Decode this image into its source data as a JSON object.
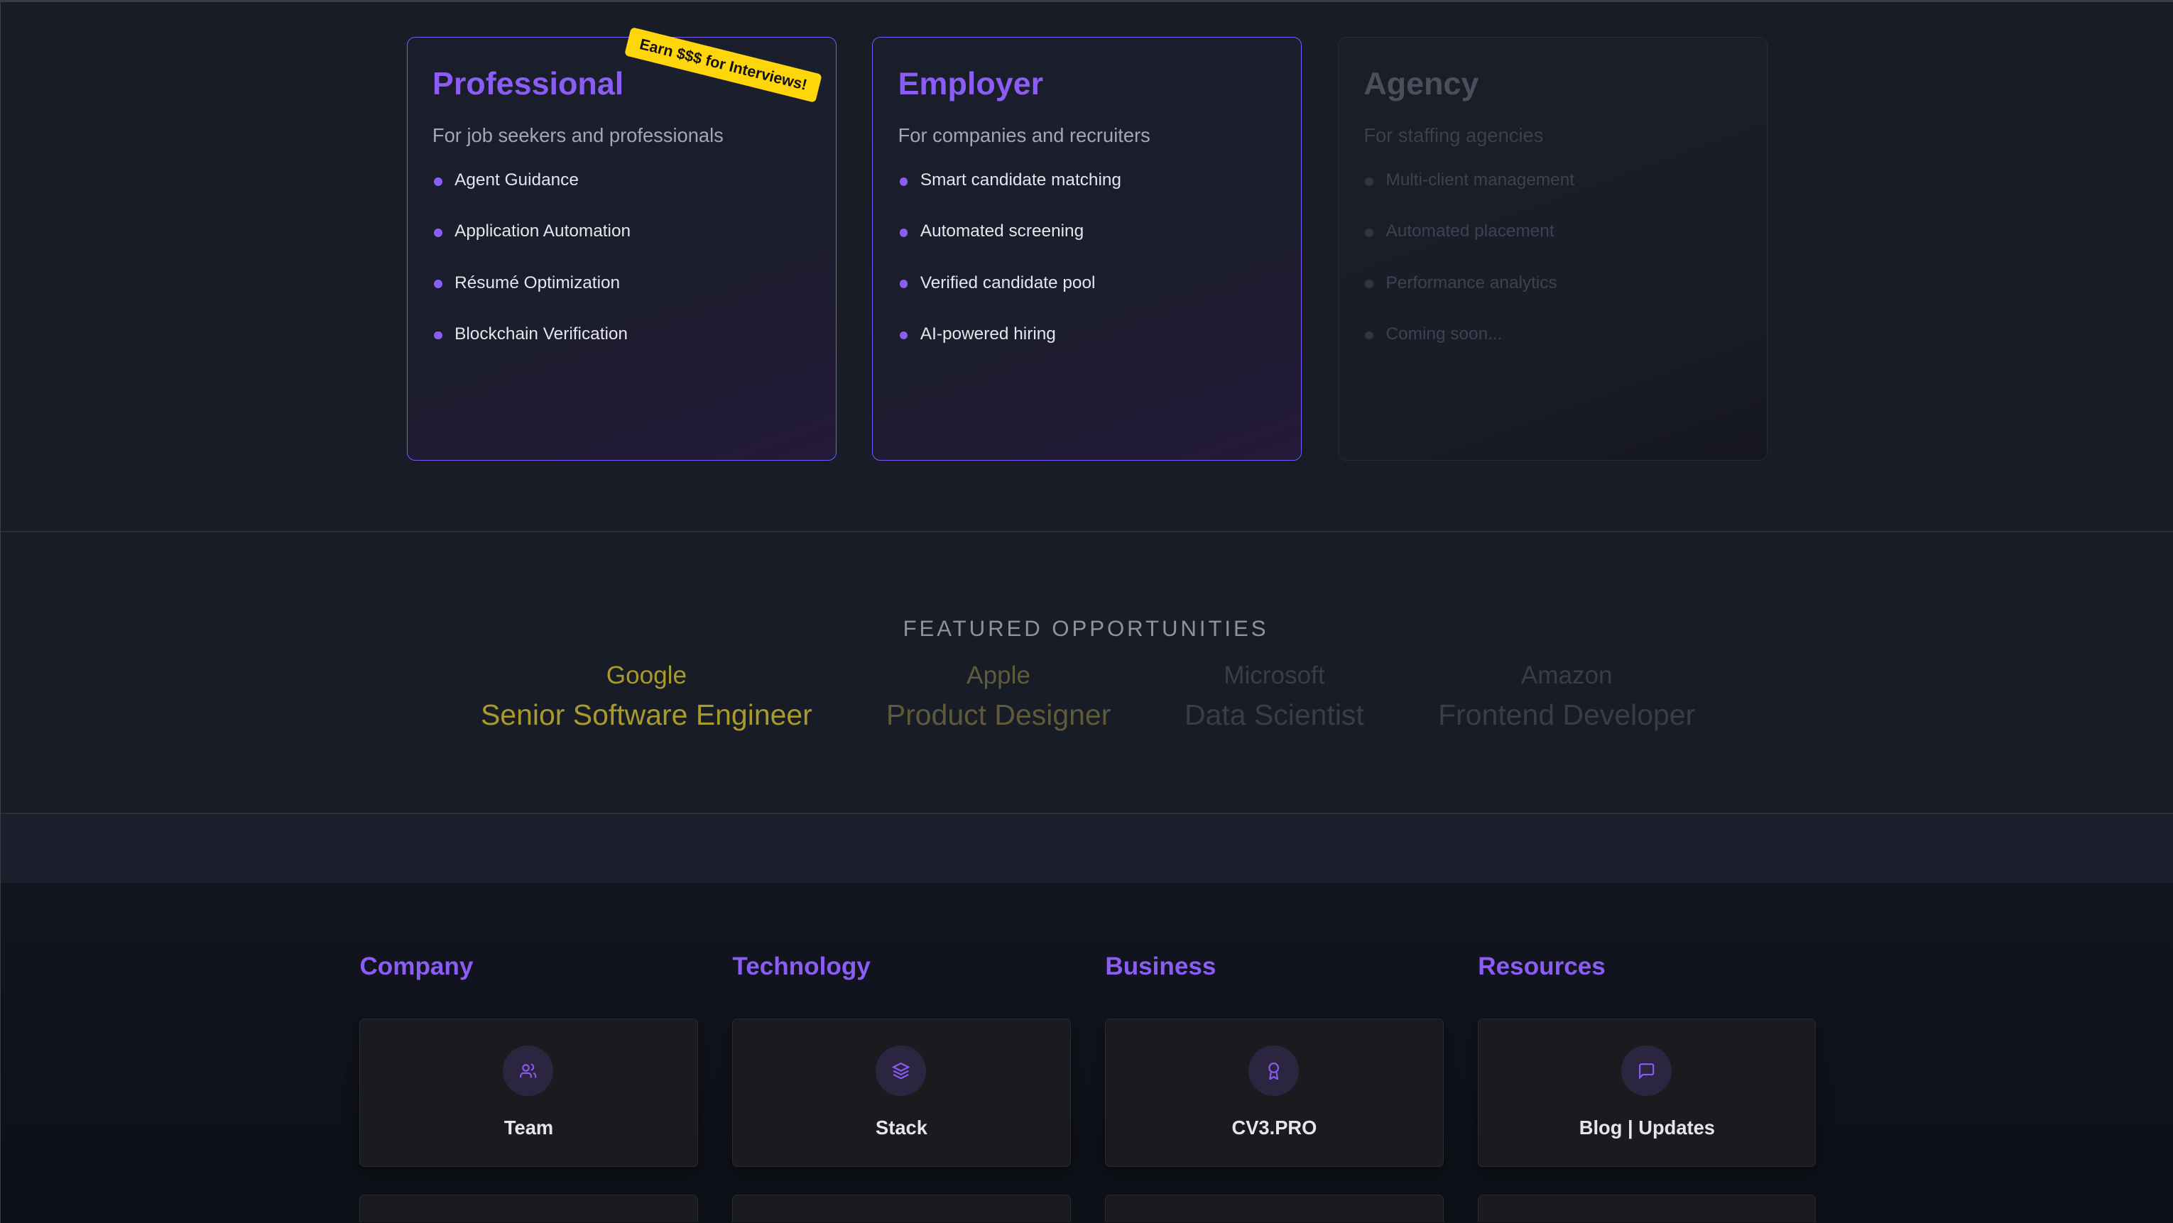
{
  "plans": [
    {
      "title": "Professional",
      "subtitle": "For job seekers and professionals",
      "features": [
        "Agent Guidance",
        "Application Automation",
        "Résumé Optimization",
        "Blockchain Verification"
      ],
      "badge": "Earn $$$ for Interviews!"
    },
    {
      "title": "Employer",
      "subtitle": "For companies and recruiters",
      "features": [
        "Smart candidate matching",
        "Automated screening",
        "Verified candidate pool",
        "AI-powered hiring"
      ]
    },
    {
      "title": "Agency",
      "subtitle": "For staffing agencies",
      "features": [
        "Multi-client management",
        "Automated placement",
        "Performance analytics",
        "Coming soon..."
      ]
    }
  ],
  "featured": {
    "title": "FEATURED OPPORTUNITIES",
    "jobs": [
      {
        "company": "Google",
        "role": "Senior Software Engineer",
        "color": "#a99a2c"
      },
      {
        "company": "Apple",
        "role": "Product Designer",
        "color": "#5f5a3a"
      },
      {
        "company": "Microsoft",
        "role": "Data Scientist",
        "color": "#3a3d48"
      },
      {
        "company": "Amazon",
        "role": "Frontend Developer",
        "color": "#3a3d48"
      }
    ]
  },
  "footer": {
    "columns": [
      {
        "heading": "Company",
        "card": "Team",
        "icon": "users-icon"
      },
      {
        "heading": "Technology",
        "card": "Stack",
        "icon": "layers-icon"
      },
      {
        "heading": "Business",
        "card": "CV3.PRO",
        "icon": "award-icon"
      },
      {
        "heading": "Resources",
        "card": "Blog | Updates",
        "icon": "message-square-icon"
      }
    ]
  },
  "colors": {
    "accent": "#8b5cf6",
    "badge": "#ffd60a"
  }
}
